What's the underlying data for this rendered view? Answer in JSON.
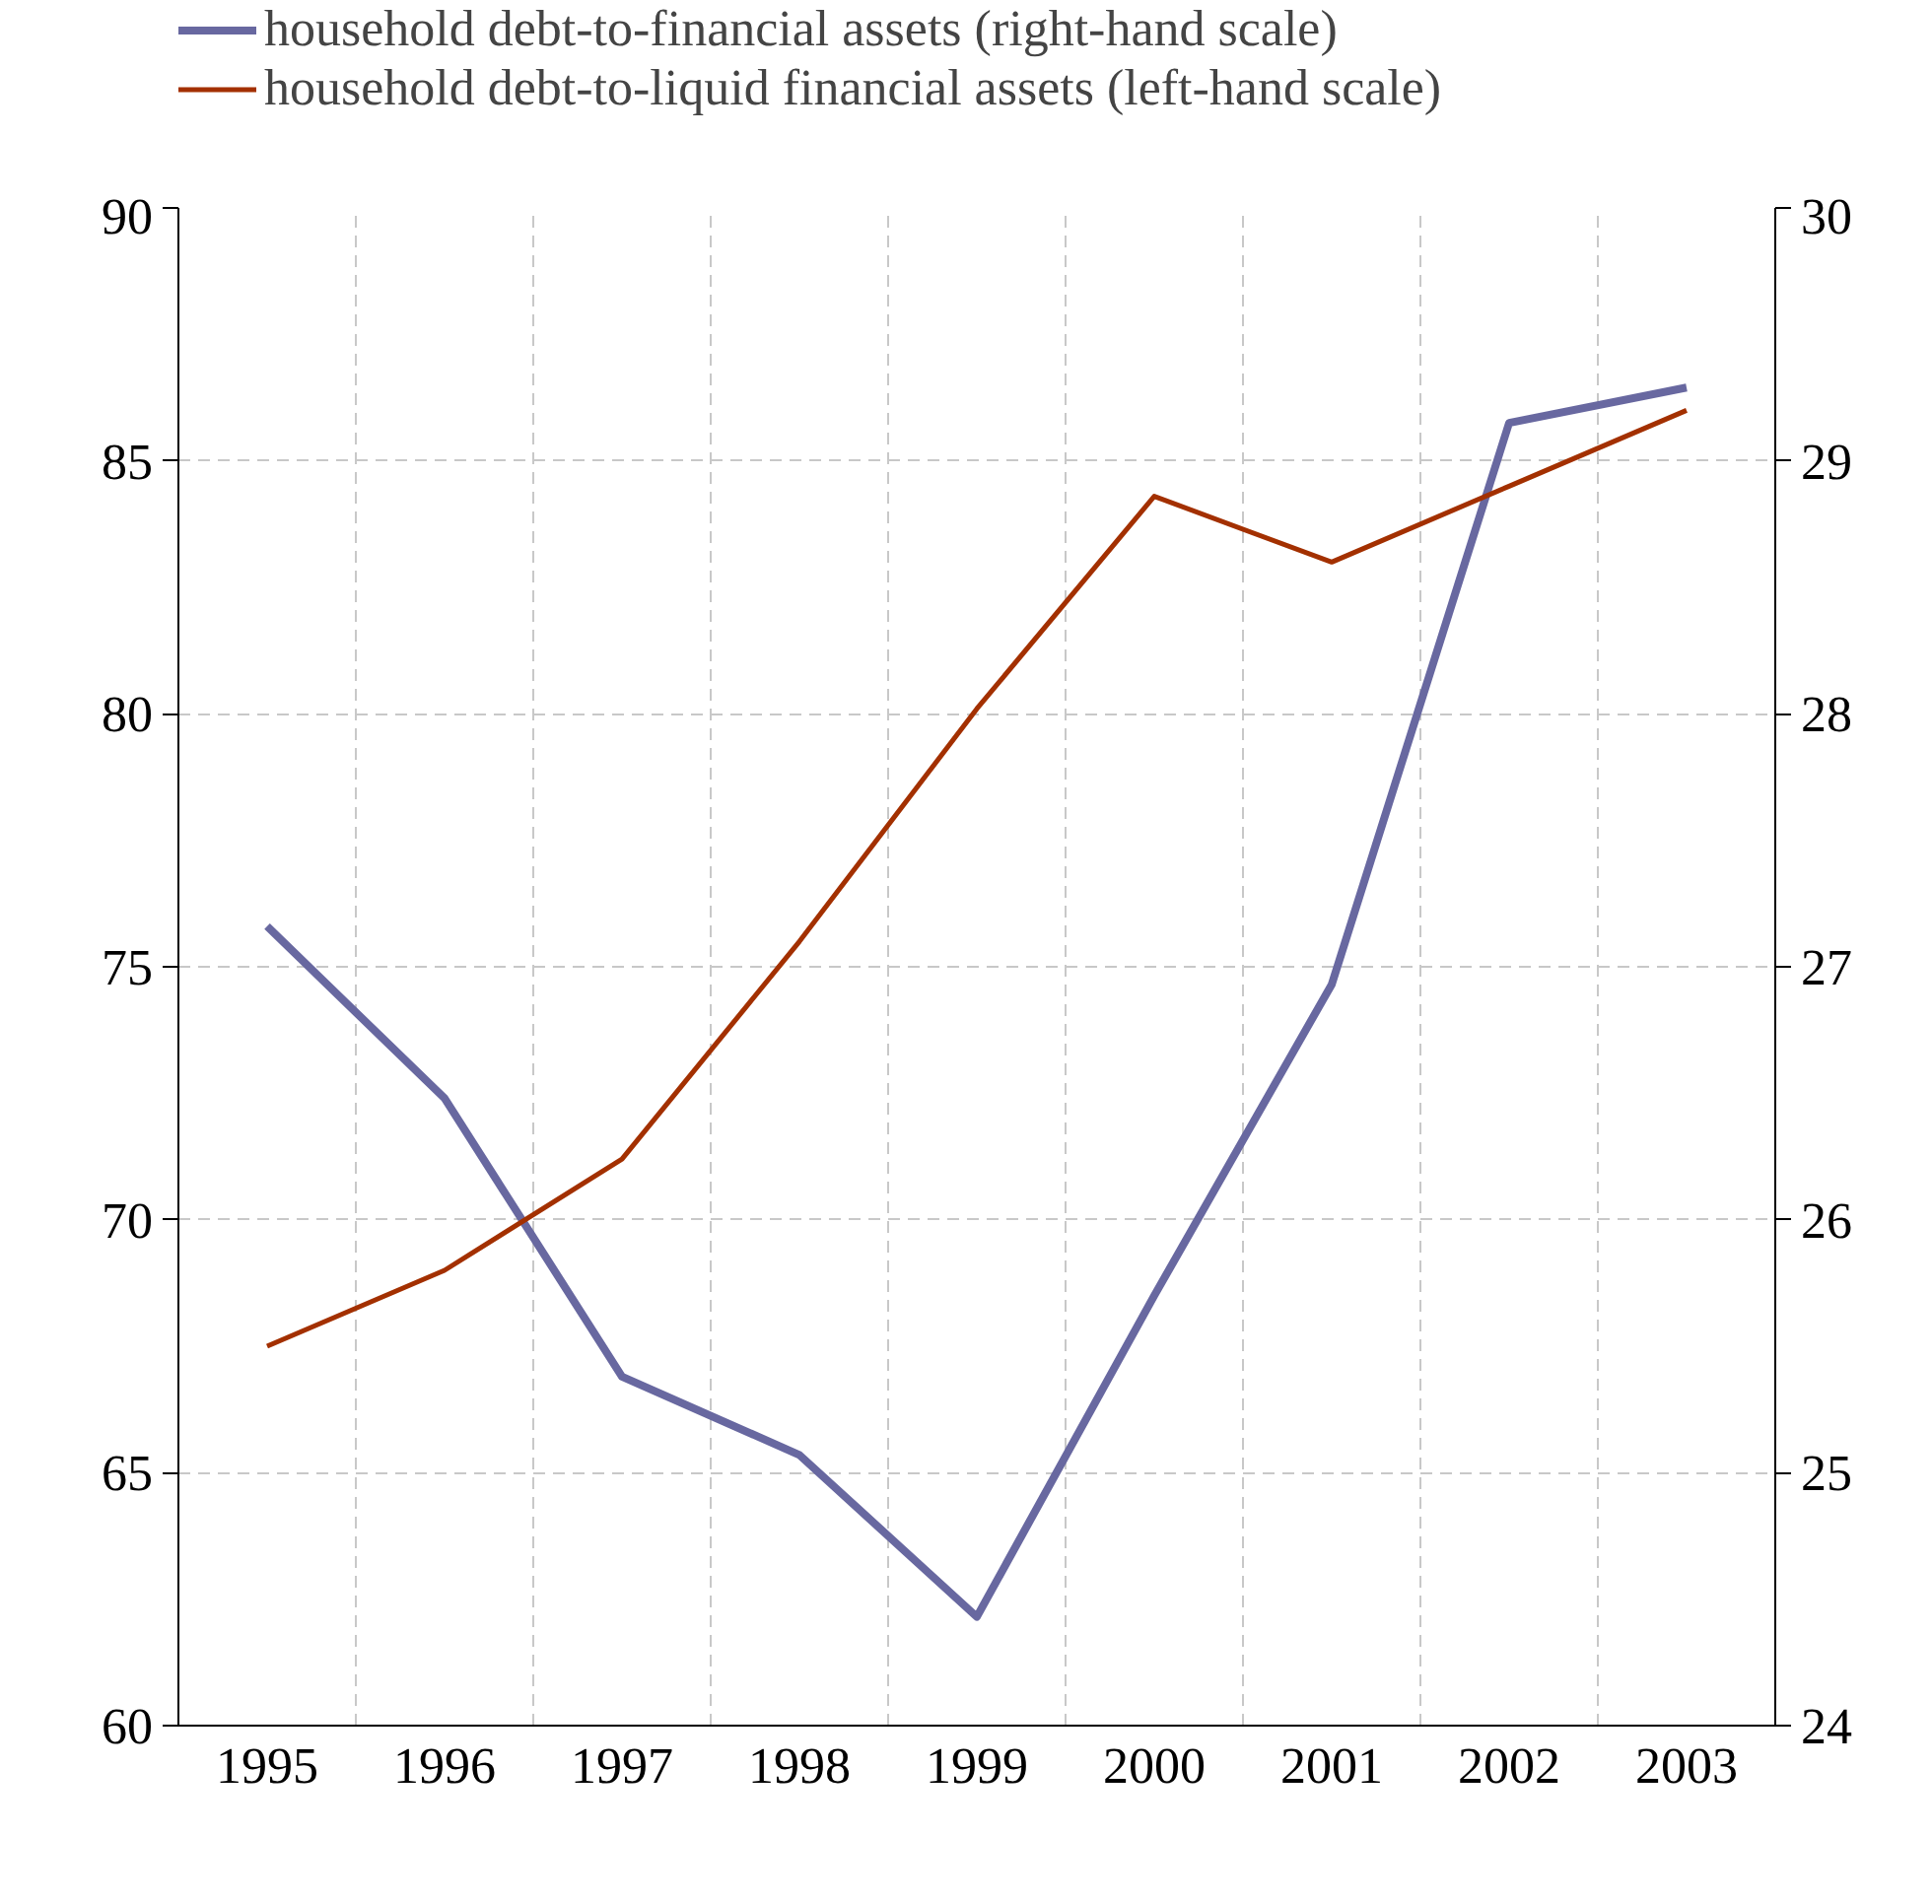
{
  "chart_data": {
    "type": "line",
    "categories": [
      "1995",
      "1996",
      "1997",
      "1998",
      "1999",
      "2000",
      "2001",
      "2002",
      "2003"
    ],
    "series": [
      {
        "name": "household debt-to-financial assets (right-hand scale)",
        "color": "#6868a0",
        "axis": "y2",
        "values": [
          27.16,
          26.48,
          25.38,
          25.07,
          24.43,
          25.7,
          26.93,
          29.15,
          29.29
        ]
      },
      {
        "name": "household debt-to-liquid financial assets (left-hand scale)",
        "color": "#a33000",
        "values": [
          67.5,
          69.0,
          71.2,
          75.5,
          80.1,
          84.3,
          83.0,
          84.5,
          86.0
        ]
      }
    ],
    "ylim": [
      60,
      90
    ],
    "yticks": [
      60,
      65,
      70,
      75,
      80,
      85,
      90
    ],
    "y2lim": [
      24,
      30
    ],
    "y2ticks": [
      24,
      25,
      26,
      27,
      28,
      29,
      30
    ],
    "grid": true,
    "legend": "top",
    "line_style": "solid",
    "marker": "none"
  }
}
